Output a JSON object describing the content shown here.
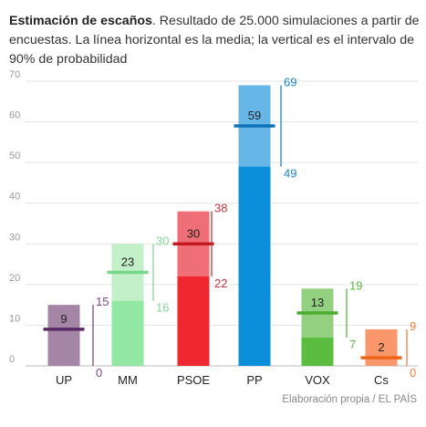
{
  "header": {
    "title_bold": "Estimación de escaños",
    "title_rest": ". Resultado de 25.000 simulaciones a partir de encuestas. La línea horizontal es la media; la vertical es el intervalo de 90% de probabilidad"
  },
  "footer": {
    "credit": "Elaboración propia / EL PAÍS"
  },
  "chart_data": {
    "type": "bar",
    "title": "Estimación de escaños",
    "ylim": [
      0,
      70
    ],
    "yticks": [
      0,
      10,
      20,
      30,
      40,
      50,
      60,
      70
    ],
    "grid": true,
    "legend": "none",
    "categories": [
      "UP",
      "MM",
      "PSOE",
      "PP",
      "VOX",
      "Cs"
    ],
    "series": [
      {
        "values_mean": [
          9,
          23,
          30,
          59,
          13,
          2
        ],
        "values_low": [
          0,
          16,
          22,
          49,
          7,
          0
        ],
        "values_high": [
          15,
          30,
          38,
          69,
          19,
          9
        ]
      }
    ],
    "colors": {
      "UP": {
        "light": "#a585a6",
        "dark": "#a585a6",
        "mean": "#5a2a66",
        "bound": "#7a4a80"
      },
      "MM": {
        "light": "#c3f0c8",
        "dark": "#92e8a2",
        "mean": "#76d58a",
        "bound": "#86d89a"
      },
      "PSOE": {
        "light": "#f06e76",
        "dark": "#ee2730",
        "mean": "#c31a22",
        "bound": "#c8323a"
      },
      "PP": {
        "light": "#67b6e8",
        "dark": "#0a8fd8",
        "mean": "#0e72b8",
        "bound": "#1a84c8"
      },
      "VOX": {
        "light": "#93d07f",
        "dark": "#5bbd3f",
        "mean": "#4aac2d",
        "bound": "#5bb83f"
      },
      "Cs": {
        "light": "#f9966a",
        "dark": "#f9966a",
        "mean": "#ee6418",
        "bound": "#f08040"
      }
    }
  }
}
